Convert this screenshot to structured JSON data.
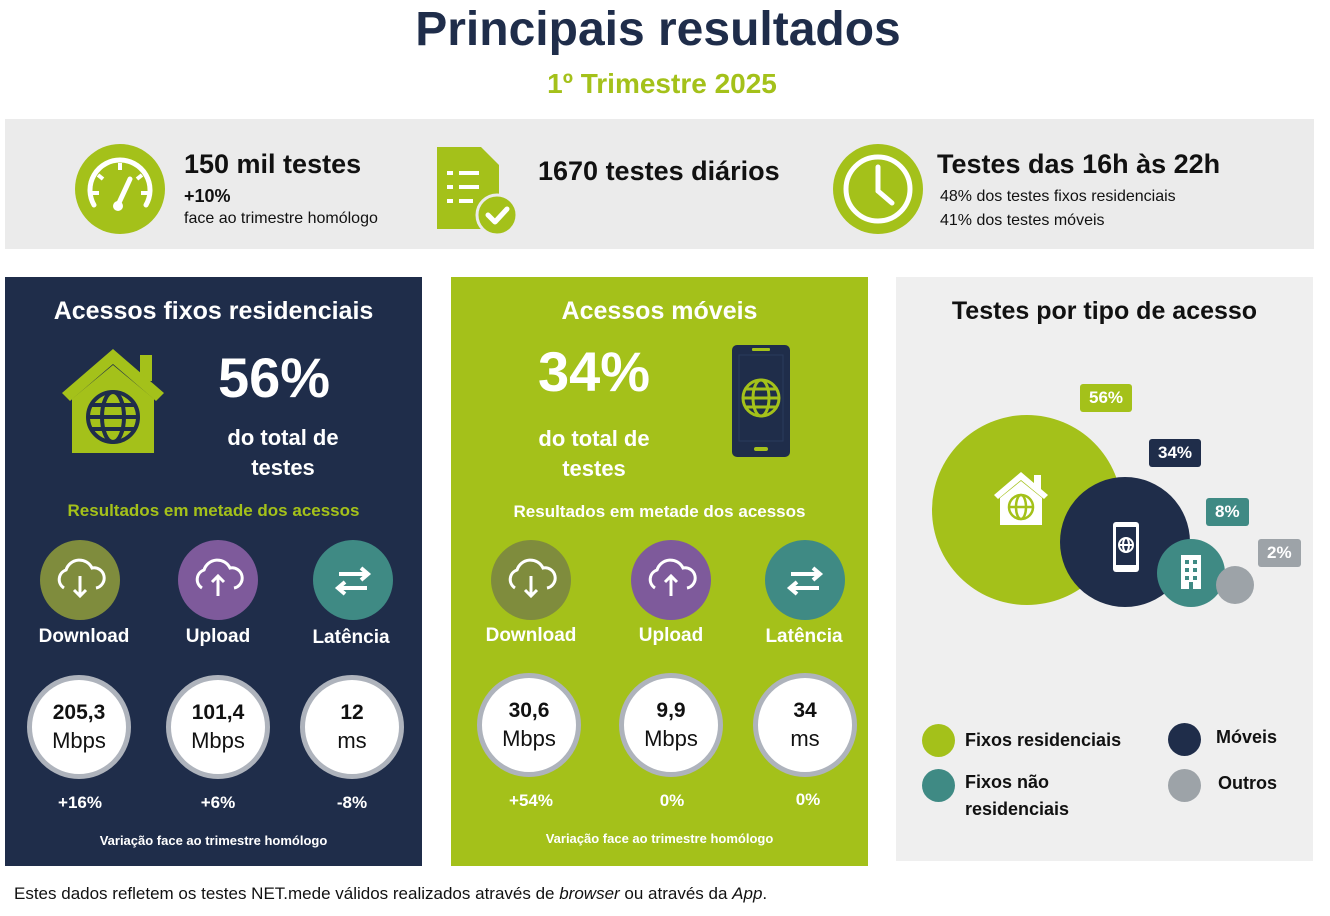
{
  "header": {
    "title": "Principais resultados",
    "subtitle": "1º Trimestre 2025"
  },
  "summary": {
    "tests": {
      "main": "150 mil testes",
      "growth": "+10%",
      "note": "face ao trimestre homólogo",
      "icon": "speedometer-icon"
    },
    "daily": {
      "main": "1670 testes diários",
      "icon": "document-check-icon"
    },
    "hours": {
      "main": "Testes das 16h às 22h",
      "line1": "48% dos testes fixos residenciais",
      "line2": "41% dos testes móveis",
      "icon": "clock-icon"
    }
  },
  "fixos": {
    "title": "Acessos fixos residenciais",
    "percent": "56%",
    "percent_text_1": "do total de",
    "percent_text_2": "testes",
    "results_label": "Resultados em metade dos acessos",
    "metrics": [
      {
        "label": "Download",
        "value": "205,3",
        "unit": "Mbps",
        "variation": "+16%"
      },
      {
        "label": "Upload",
        "value": "101,4",
        "unit": "Mbps",
        "variation": "+6%"
      },
      {
        "label": "Latência",
        "value": "12",
        "unit": "ms",
        "variation": "-8%"
      }
    ],
    "variation_note": "Variação face ao trimestre homólogo"
  },
  "moveis": {
    "title": "Acessos móveis",
    "percent": "34%",
    "percent_text_1": "do total de",
    "percent_text_2": "testes",
    "results_label": "Resultados em metade dos acessos",
    "metrics": [
      {
        "label": "Download",
        "value": "30,6",
        "unit": "Mbps",
        "variation": "+54%"
      },
      {
        "label": "Upload",
        "value": "9,9",
        "unit": "Mbps",
        "variation": "0%"
      },
      {
        "label": "Latência",
        "value": "34",
        "unit": "ms",
        "variation": "0%"
      }
    ],
    "variation_note": "Variação face ao trimestre homólogo"
  },
  "tipo": {
    "title": "Testes por tipo de acesso",
    "items": [
      {
        "name": "Fixos residenciais",
        "pct": "56%",
        "share": 56,
        "color": "#a4c11a"
      },
      {
        "name": "Móveis",
        "pct": "34%",
        "share": 34,
        "color": "#1f2d4a"
      },
      {
        "name": "Fixos não residenciais",
        "pct": "8%",
        "share": 8,
        "color": "#3f8a84"
      },
      {
        "name": "Outros",
        "pct": "2%",
        "share": 2,
        "color": "#9da3a8"
      }
    ],
    "legend": {
      "fixos_res": "Fixos residenciais",
      "moveis": "Móveis",
      "fixos_nao_1": "Fixos não",
      "fixos_nao_2": "residenciais",
      "outros": "Outros"
    }
  },
  "colors": {
    "navy": "#1f2d4a",
    "lime": "#a4c11a",
    "download": "#7f8c3d",
    "upload": "#7e5a9b",
    "latency": "#3f8a84",
    "grey": "#9da3a8"
  },
  "footer": {
    "part1": "Estes dados refletem os testes NET.mede válidos realizados através de ",
    "browser": "browser",
    "part2": " ou através da ",
    "app": "App",
    "part3": "."
  }
}
